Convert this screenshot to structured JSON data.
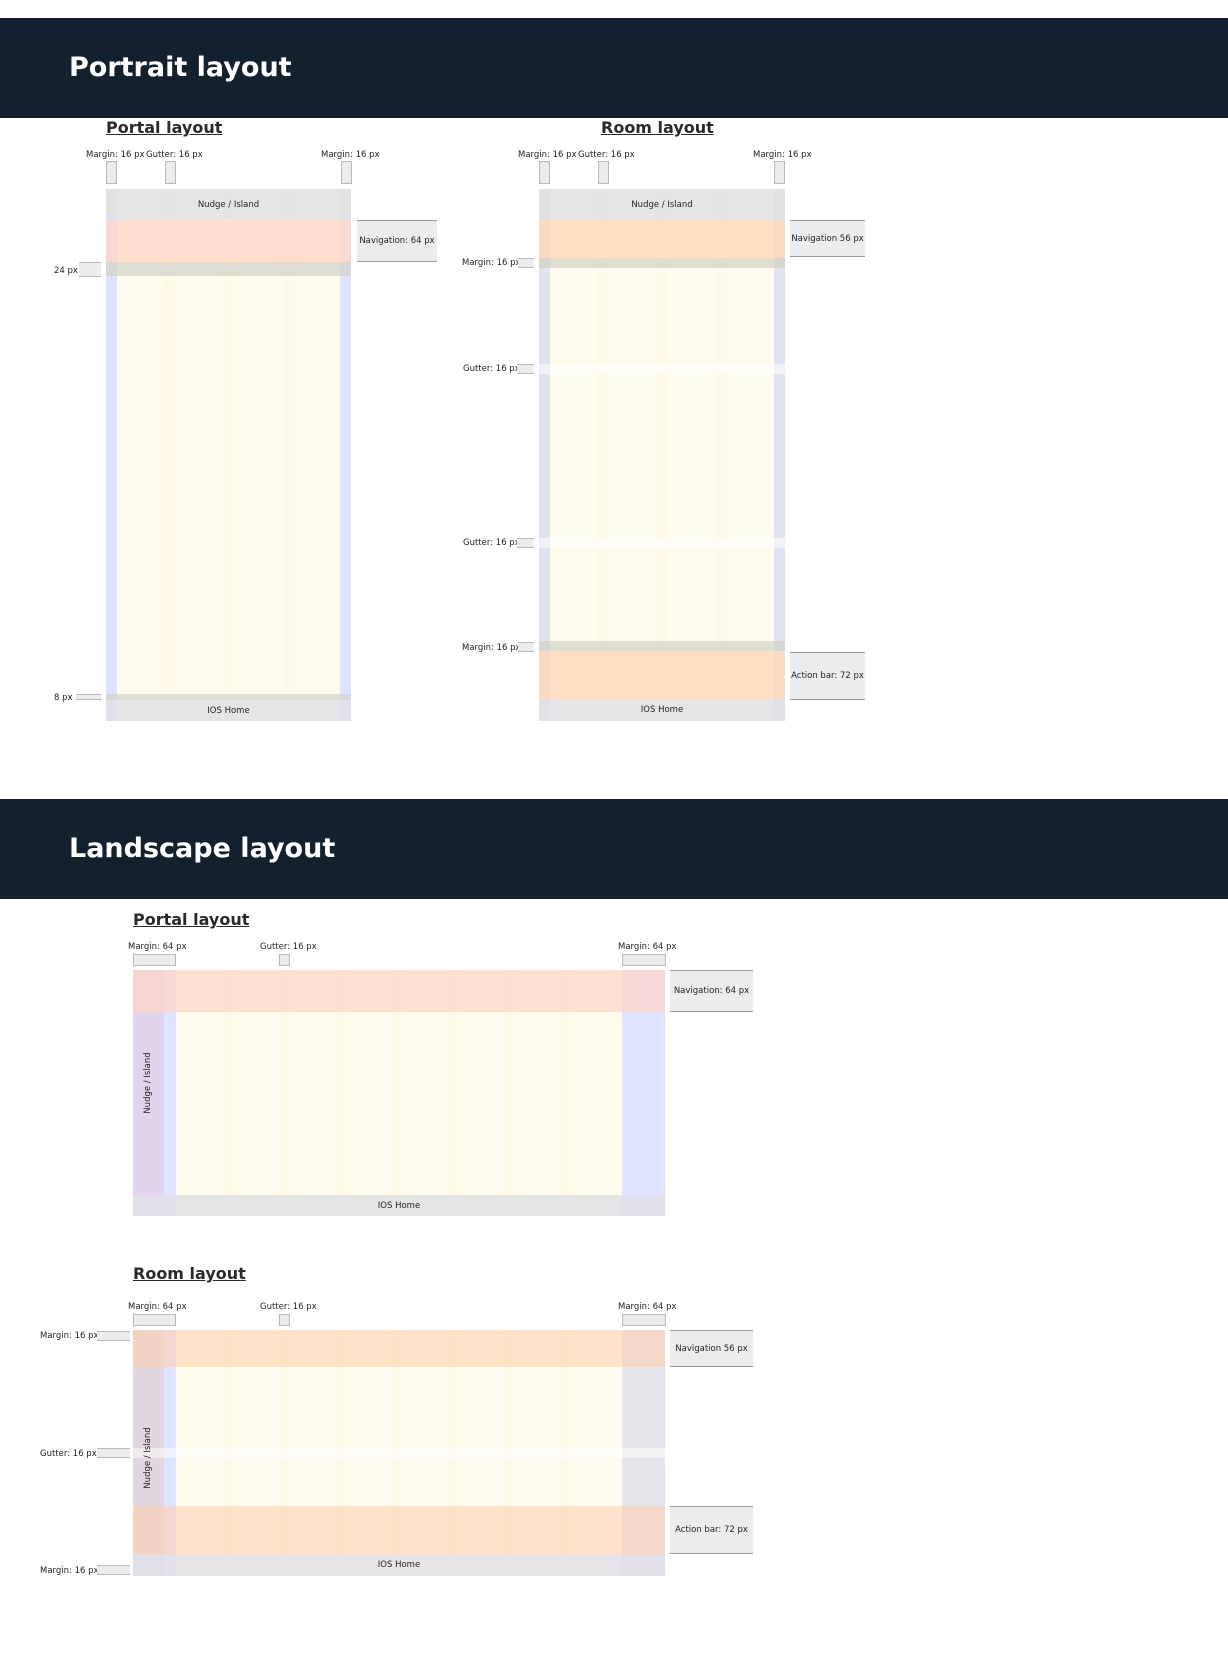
{
  "sections": {
    "portrait": {
      "title": "Portrait layout"
    },
    "landscape": {
      "title": "Landscape layout"
    }
  },
  "portrait_portal": {
    "title": "Portal layout",
    "margin_left": "Margin: 16 px",
    "gutter": "Gutter: 16 px",
    "margin_right": "Margin: 16 px",
    "top_band": "Nudge / Island",
    "bottom_band": "IOS Home",
    "navigation": "Navigation: 64 px",
    "spacing_top": "24 px",
    "spacing_bottom": "8 px"
  },
  "portrait_room": {
    "title": "Room layout",
    "margin_left": "Margin: 16 px",
    "gutter": "Gutter: 16 px",
    "margin_right": "Margin: 16 px",
    "top_band": "Nudge / Island",
    "bottom_band": "IOS Home",
    "navigation": "Navigation 56 px",
    "action_bar": "Action bar: 72 px",
    "row_margin_top": "Margin: 16 px",
    "row_gutter_1": "Gutter: 16 px",
    "row_gutter_2": "Gutter: 16 px",
    "row_margin_bottom": "Margin: 16 px"
  },
  "landscape_portal": {
    "title": "Portal layout",
    "margin_left": "Margin: 64 px",
    "gutter": "Gutter: 16 px",
    "margin_right": "Margin: 64 px",
    "side_band": "Nudge / Island",
    "bottom_band": "IOS Home",
    "navigation": "Navigation: 64 px"
  },
  "landscape_room": {
    "title": "Room layout",
    "margin_left": "Margin: 64 px",
    "gutter": "Gutter: 16 px",
    "margin_right": "Margin: 64 px",
    "side_band": "Nudge / Island",
    "bottom_band": "IOS Home",
    "navigation": "Navigation 56 px",
    "action_bar": "Action bar: 72 px",
    "row_margin_top": "Margin: 16 px",
    "row_gutter": "Gutter: 16 px",
    "row_margin_bottom": "Margin: 16 px"
  },
  "colors": {
    "banner": "#13212f",
    "column": "#fff6d6",
    "margin": "#d9deff",
    "navigation": "#ffd8c4",
    "band": "#e6e6e6",
    "nudge_side": "#e2d2ea"
  }
}
